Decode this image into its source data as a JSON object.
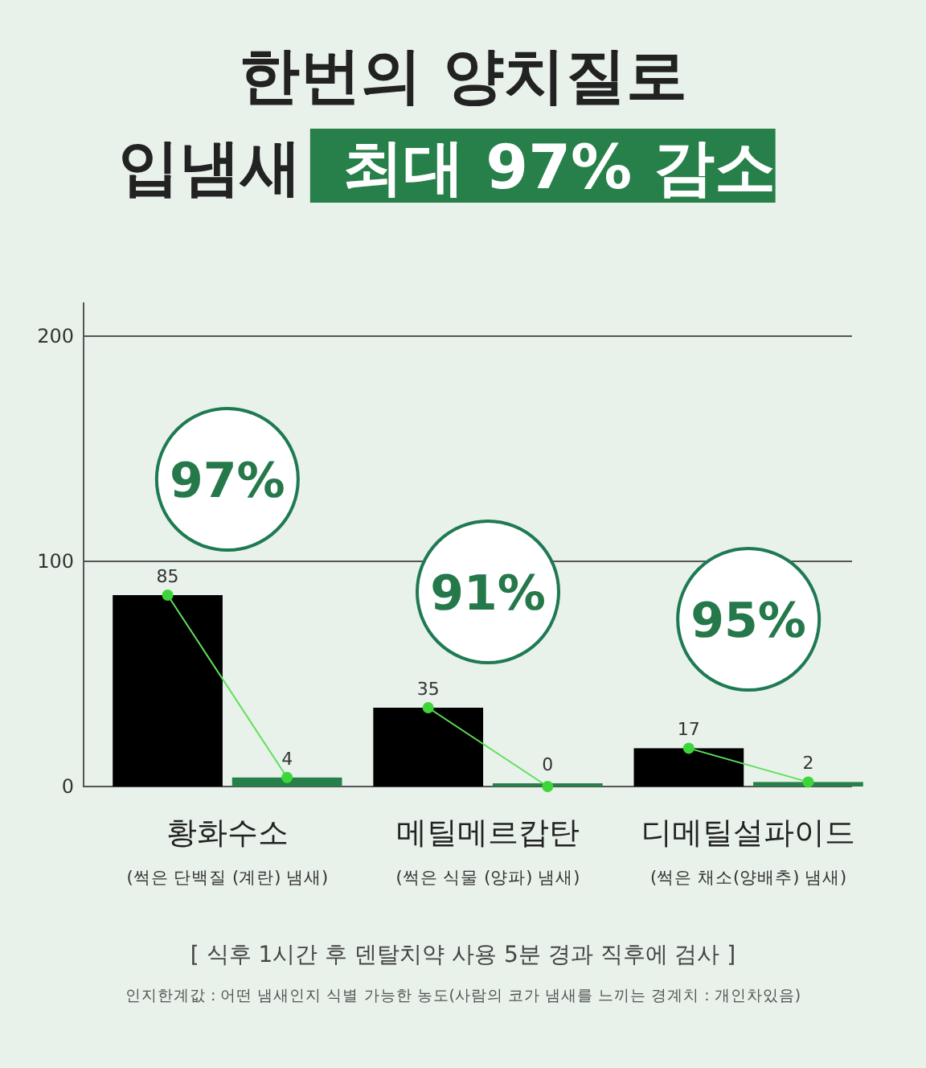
{
  "chart_data": {
    "type": "bar",
    "title": "한번의 양치질로",
    "subtitle": "입냄새 최대 97% 감소",
    "categories": [
      "황화수소",
      "메틸메르캅탄",
      "디메틸설파이드"
    ],
    "series": [
      {
        "color": "#000000",
        "values": [
          85,
          35,
          17
        ]
      },
      {
        "color": "#278049",
        "values": [
          4,
          0,
          2
        ]
      }
    ],
    "ylim": [
      0,
      215
    ],
    "yticks": [
      0,
      100,
      200
    ],
    "grid": "y",
    "data_labels": true,
    "annotations": [
      "97%",
      "91%",
      "95%",
      "(썩은 단백질 (계란) 냄새)",
      "(썩은 식물 (양파) 냄새)",
      "(썩은 채소(양배추) 냄새)",
      "[ 식후 1시간 후 덴탈치약 사용 5분 경과 직후에 검사 ]",
      "인지한계값 : 어떤 냄새인지 식별 가능한 농도(사람의 코가 냄새를 느끼는 경계치 : 개인차있음)"
    ]
  }
}
